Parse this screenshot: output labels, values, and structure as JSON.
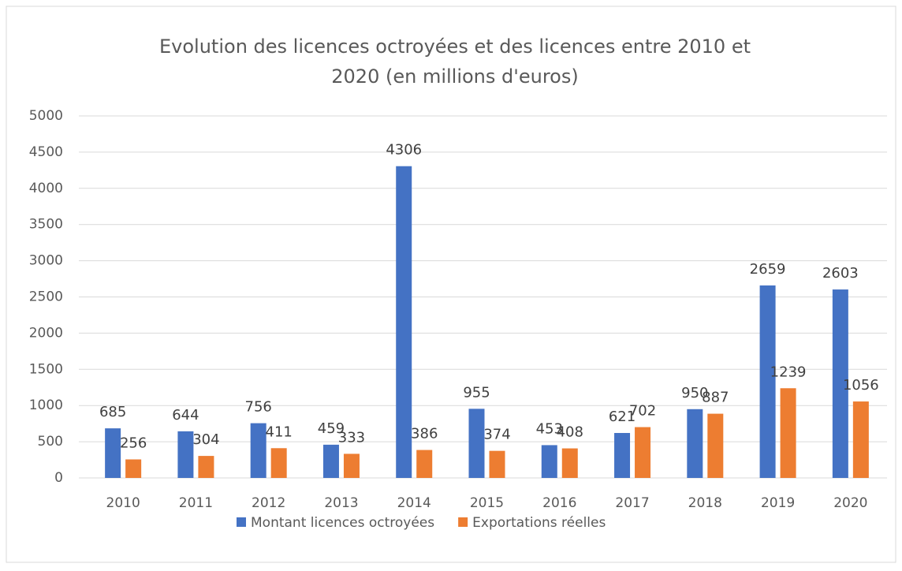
{
  "chart_data": {
    "type": "bar",
    "title_lines": [
      "Evolution des licences octroyées et des licences entre 2010 et",
      "2020 (en millions d'euros)"
    ],
    "categories": [
      "2010",
      "2011",
      "2012",
      "2013",
      "2014",
      "2015",
      "2016",
      "2017",
      "2018",
      "2019",
      "2020"
    ],
    "series": [
      {
        "name": "Montant licences octroyées",
        "color": "#4472c4",
        "values": [
          685,
          644,
          756,
          459,
          4306,
          955,
          453,
          621,
          950,
          2659,
          2603
        ]
      },
      {
        "name": "Exportations réelles",
        "color": "#ed7d31",
        "values": [
          256,
          304,
          411,
          333,
          386,
          374,
          408,
          702,
          887,
          1239,
          1056
        ]
      }
    ],
    "ylim": [
      0,
      5000
    ],
    "yticks": [
      0,
      500,
      1000,
      1500,
      2000,
      2500,
      3000,
      3500,
      4000,
      4500,
      5000
    ],
    "grid": true,
    "legend": "bottom"
  }
}
